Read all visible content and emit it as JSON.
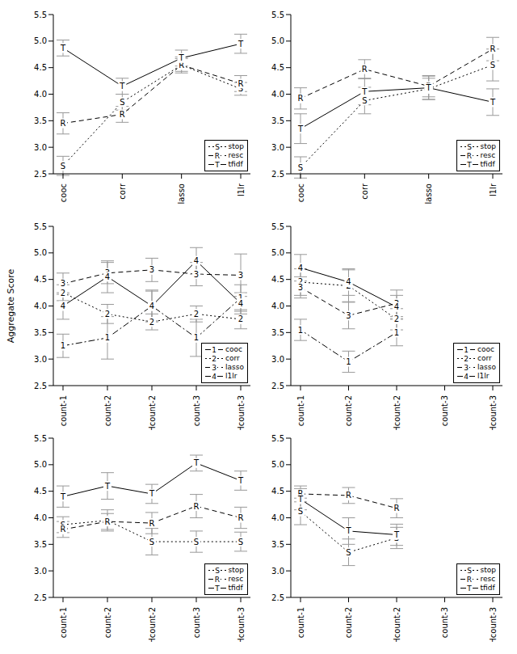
{
  "chart_data": [
    {
      "type": "line",
      "categories": [
        "cooc",
        "corr",
        "lasso",
        "l1lr"
      ],
      "ylim": [
        2.5,
        5.5
      ],
      "yticks": [
        2.5,
        {
          "value": 3,
          "label": "3.0"
        },
        3.5,
        {
          "value": 4,
          "label": "4.0"
        },
        4.5,
        {
          "value": 5,
          "label": "5.0"
        },
        5.5
      ],
      "legend": "bottom right",
      "series": [
        {
          "name": "stop",
          "marker": "S",
          "line_style": "dotted",
          "color": "#000000",
          "values": [
            2.65,
            3.85,
            4.55,
            4.1
          ],
          "errors": [
            0.18,
            0.15,
            0.12,
            0.12
          ]
        },
        {
          "name": "resc",
          "marker": "R",
          "line_style": "dashed",
          "color": "#000000",
          "values": [
            3.45,
            3.62,
            4.55,
            4.2
          ],
          "errors": [
            0.2,
            0.15,
            0.15,
            0.15
          ]
        },
        {
          "name": "tfidf",
          "marker": "T",
          "line_style": "solid",
          "color": "#000000",
          "values": [
            4.87,
            4.15,
            4.68,
            4.95
          ],
          "errors": [
            0.15,
            0.15,
            0.15,
            0.18
          ]
        }
      ]
    },
    {
      "type": "line",
      "categories": [
        "cooc",
        "corr",
        "lasso",
        "l1lr"
      ],
      "ylim": [
        2.5,
        5.5
      ],
      "yticks": [
        2.5,
        {
          "value": 3,
          "label": "3.0"
        },
        3.5,
        {
          "value": 4,
          "label": "4.0"
        },
        4.5,
        {
          "value": 5,
          "label": "5.0"
        },
        5.5
      ],
      "legend": "bottom right",
      "series": [
        {
          "name": "stop",
          "marker": "S",
          "line_style": "dotted",
          "color": "#000000",
          "values": [
            2.62,
            3.88,
            4.1,
            4.55
          ],
          "errors": [
            0.2,
            0.25,
            0.2,
            0.3
          ]
        },
        {
          "name": "resc",
          "marker": "R",
          "line_style": "dashed",
          "color": "#000000",
          "values": [
            3.92,
            4.47,
            4.15,
            4.85
          ],
          "errors": [
            0.2,
            0.18,
            0.2,
            0.22
          ]
        },
        {
          "name": "tfidf",
          "marker": "T",
          "line_style": "solid",
          "color": "#000000",
          "values": [
            3.35,
            4.05,
            4.12,
            3.85
          ],
          "errors": [
            0.28,
            0.25,
            0.22,
            0.25
          ]
        }
      ]
    },
    {
      "type": "line",
      "categories": [
        "count-1",
        "count-2",
        "Hcount-2",
        "count-3",
        "Hcount-3"
      ],
      "ylabel": "Aggregate Score",
      "ylim": [
        2.5,
        5.5
      ],
      "yticks": [
        2.5,
        {
          "value": 3,
          "label": "3.0"
        },
        3.5,
        {
          "value": 4,
          "label": "4.0"
        },
        4.5,
        {
          "value": 5,
          "label": "5.0"
        },
        5.5
      ],
      "legend": "bottom right",
      "series": [
        {
          "name": "cooc",
          "marker": "1",
          "line_style": "dashdot",
          "color": "#000000",
          "values": [
            3.25,
            3.4,
            4.0,
            3.4,
            4.15
          ],
          "errors": [
            0.22,
            0.4,
            0.3,
            0.35,
            0.25
          ]
        },
        {
          "name": "corr",
          "marker": "2",
          "line_style": "dotted",
          "color": "#000000",
          "values": [
            4.25,
            3.85,
            3.7,
            3.85,
            3.75
          ],
          "errors": [
            0.15,
            0.18,
            0.15,
            0.15,
            0.18
          ]
        },
        {
          "name": "lasso",
          "marker": "3",
          "line_style": "dashed",
          "color": "#000000",
          "values": [
            4.42,
            4.62,
            4.68,
            4.6,
            4.58
          ],
          "errors": [
            0.2,
            0.2,
            0.22,
            0.22,
            0.4
          ]
        },
        {
          "name": "l1lr",
          "marker": "4",
          "line_style": "solid",
          "color": "#000000",
          "values": [
            4.0,
            4.55,
            4.0,
            4.85,
            4.05
          ],
          "errors": [
            0.25,
            0.3,
            0.28,
            0.25,
            0.2
          ]
        }
      ]
    },
    {
      "type": "line",
      "categories": [
        "count-1",
        "count-2",
        "Hcount-2",
        "count-3",
        "Hcount-3"
      ],
      "ylim": [
        2.5,
        5.5
      ],
      "yticks": [
        2.5,
        {
          "value": 3,
          "label": "3.0"
        },
        3.5,
        {
          "value": 4,
          "label": "4.0"
        },
        4.5,
        {
          "value": 5,
          "label": "5.0"
        },
        5.5
      ],
      "legend": "bottom right",
      "series": [
        {
          "name": "cooc",
          "marker": "1",
          "line_style": "dashdot",
          "color": "#000000",
          "values": [
            3.55,
            2.95,
            3.5,
            null,
            null
          ],
          "errors": [
            0.2,
            0.2,
            0.25,
            null,
            null
          ]
        },
        {
          "name": "corr",
          "marker": "2",
          "line_style": "dotted",
          "color": "#000000",
          "values": [
            4.45,
            4.38,
            3.75,
            null,
            null
          ],
          "errors": [
            0.25,
            0.3,
            0.2,
            null,
            null
          ]
        },
        {
          "name": "lasso",
          "marker": "3",
          "line_style": "dashed",
          "color": "#000000",
          "values": [
            4.35,
            3.82,
            4.05,
            null,
            null
          ],
          "errors": [
            0.2,
            0.25,
            0.25,
            null,
            null
          ]
        },
        {
          "name": "l1lr",
          "marker": "4",
          "line_style": "solid",
          "color": "#000000",
          "values": [
            4.72,
            4.45,
            3.98,
            null,
            null
          ],
          "errors": [
            0.25,
            0.25,
            0.22,
            null,
            null
          ]
        }
      ]
    },
    {
      "type": "line",
      "categories": [
        "count-1",
        "count-2",
        "Hcount-2",
        "count-3",
        "Hcount-3"
      ],
      "ylim": [
        2.5,
        5.5
      ],
      "yticks": [
        2.5,
        {
          "value": 3,
          "label": "3.0"
        },
        3.5,
        {
          "value": 4,
          "label": "4.0"
        },
        4.5,
        {
          "value": 5,
          "label": "5.0"
        },
        5.5
      ],
      "legend": "bottom right",
      "series": [
        {
          "name": "stop",
          "marker": "S",
          "line_style": "dotted",
          "color": "#000000",
          "values": [
            3.87,
            3.95,
            3.55,
            3.55,
            3.55
          ],
          "errors": [
            0.15,
            0.2,
            0.25,
            0.2,
            0.18
          ]
        },
        {
          "name": "resc",
          "marker": "R",
          "line_style": "dashed",
          "color": "#000000",
          "values": [
            3.78,
            3.93,
            3.9,
            4.22,
            4.0
          ],
          "errors": [
            0.15,
            0.15,
            0.2,
            0.22,
            0.2
          ]
        },
        {
          "name": "tfidf",
          "marker": "T",
          "line_style": "solid",
          "color": "#000000",
          "values": [
            4.4,
            4.6,
            4.45,
            5.03,
            4.7
          ],
          "errors": [
            0.2,
            0.25,
            0.18,
            0.15,
            0.18
          ]
        }
      ]
    },
    {
      "type": "line",
      "categories": [
        "count-1",
        "count-2",
        "Hcount-2",
        "count-3",
        "Hcount-3"
      ],
      "ylim": [
        2.5,
        5.5
      ],
      "yticks": [
        2.5,
        {
          "value": 3,
          "label": "3.0"
        },
        3.5,
        {
          "value": 4,
          "label": "4.0"
        },
        4.5,
        {
          "value": 5,
          "label": "5.0"
        },
        5.5
      ],
      "legend": "bottom right",
      "series": [
        {
          "name": "stop",
          "marker": "S",
          "line_style": "dotted",
          "color": "#000000",
          "values": [
            4.12,
            3.35,
            3.62,
            null,
            null
          ],
          "errors": [
            0.25,
            0.25,
            0.2,
            null,
            null
          ]
        },
        {
          "name": "resc",
          "marker": "R",
          "line_style": "dashed",
          "color": "#000000",
          "values": [
            4.45,
            4.42,
            4.18,
            null,
            null
          ],
          "errors": [
            0.15,
            0.15,
            0.18,
            null,
            null
          ]
        },
        {
          "name": "tfidf",
          "marker": "T",
          "line_style": "solid",
          "color": "#000000",
          "values": [
            4.35,
            3.75,
            3.68,
            null,
            null
          ],
          "errors": [
            0.2,
            0.25,
            0.2,
            null,
            null
          ]
        }
      ]
    }
  ]
}
